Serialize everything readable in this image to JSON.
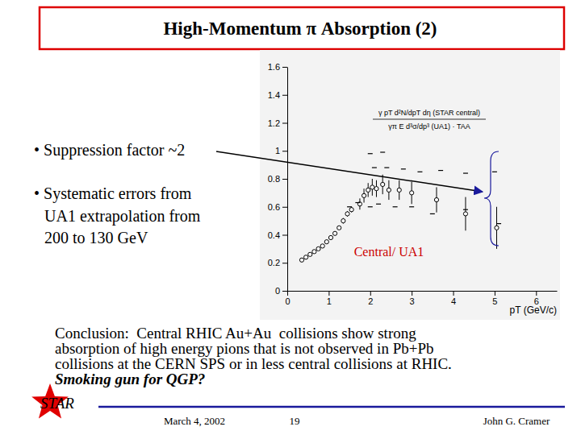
{
  "chart_data": {
    "type": "scatter",
    "xlabel": "pT (GeV/c)",
    "annotations": [
      "γ pT d²N/dpT dη (STAR central)",
      "γπ E d³σ/dp³ (UA1) · TAA",
      "Central/ UA1"
    ],
    "xlim": [
      0,
      6.5
    ],
    "xticks": [
      0,
      1,
      2,
      3,
      4,
      5,
      6
    ],
    "ylim": [
      0,
      1.6
    ],
    "yticks": [
      0,
      0.2,
      0.4,
      0.6,
      0.8,
      1,
      1.2,
      1.4,
      1.6
    ],
    "grid": false,
    "series": [
      {
        "color": "#000000",
        "marker": "circle",
        "x": [
          0.35,
          0.45,
          0.55,
          0.65,
          0.75,
          0.85,
          0.95,
          1.05,
          1.15,
          1.25,
          1.35,
          1.45,
          1.55,
          1.75,
          1.85,
          1.95,
          2.05,
          2.15,
          2.3,
          2.45,
          2.7,
          3.0,
          3.6,
          4.3,
          5.05
        ],
        "values": [
          0.22,
          0.24,
          0.26,
          0.28,
          0.3,
          0.32,
          0.35,
          0.38,
          0.41,
          0.45,
          0.5,
          0.55,
          0.58,
          0.62,
          0.68,
          0.72,
          0.74,
          0.73,
          0.76,
          0.72,
          0.72,
          0.7,
          0.65,
          0.55,
          0.45
        ],
        "errors": [
          0.01,
          0.01,
          0.01,
          0.01,
          0.01,
          0.01,
          0.01,
          0.01,
          0.01,
          0.01,
          0.02,
          0.02,
          0.02,
          0.04,
          0.05,
          0.05,
          0.06,
          0.06,
          0.07,
          0.07,
          0.07,
          0.08,
          0.09,
          0.12,
          0.15
        ]
      },
      {
        "color": "#000000",
        "marker": "dash",
        "x": [
          2.0,
          2.3,
          2.1,
          2.4,
          2.8,
          3.2,
          3.7,
          4.3,
          5.0,
          1.5,
          1.7,
          2.0,
          2.2,
          2.6,
          3.0,
          3.5,
          4.3,
          5.1
        ],
        "values": [
          0.98,
          0.99,
          0.88,
          0.88,
          0.87,
          0.85,
          0.86,
          0.84,
          0.85,
          0.6,
          0.63,
          0.6,
          0.62,
          0.6,
          0.6,
          0.55,
          0.58,
          0.48
        ]
      }
    ]
  },
  "slide": {
    "title": "High-Momentum π Absorption (2)",
    "bullets": [
      [
        "• Suppression factor ~2"
      ],
      [
        "• Systematic errors from",
        "UA1 extrapolation from",
        "200 to 130 GeV"
      ]
    ],
    "conclusion": [
      "Conclusion:  Central RHIC Au+Au  collisions show strong",
      "absorption of high energy pions that is not observed in Pb+Pb",
      "collisions at the CERN SPS or in less central collisions at RHIC."
    ],
    "emphasis": "Smoking gun for QGP?",
    "logo": "STAR",
    "date": "March 4, 2002",
    "page": "19",
    "author": "John G. Cramer"
  }
}
